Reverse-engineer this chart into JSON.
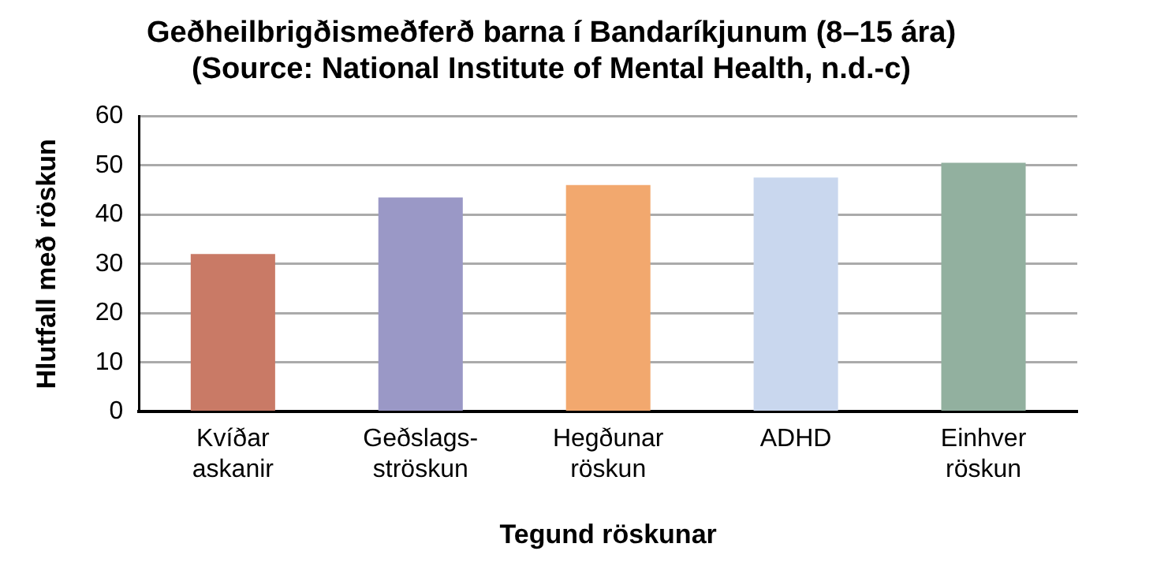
{
  "chart_data": {
    "type": "bar",
    "title": [
      "Geðheilbrigðismeðferð barna í Bandaríkjunum (8–15 ára)",
      "(Source: National Institute of Mental Health, n.d.-c)"
    ],
    "xlabel": "Tegund röskunar",
    "ylabel": "Hlutfall með röskun",
    "categories": [
      "Kvíðar askanir",
      "Geðslags-ströskun",
      "Hegðunar röskun",
      "ADHD",
      "Einhver röskun"
    ],
    "values": [
      32,
      43.5,
      46,
      47.5,
      50.5
    ],
    "colors": [
      "#c97a66",
      "#9a98c6",
      "#f2a86e",
      "#c9d7ee",
      "#92b09f"
    ],
    "ylim": [
      0,
      60
    ],
    "yticks": [
      0,
      10,
      20,
      30,
      40,
      50,
      60
    ],
    "grid": "y",
    "legend": false
  }
}
